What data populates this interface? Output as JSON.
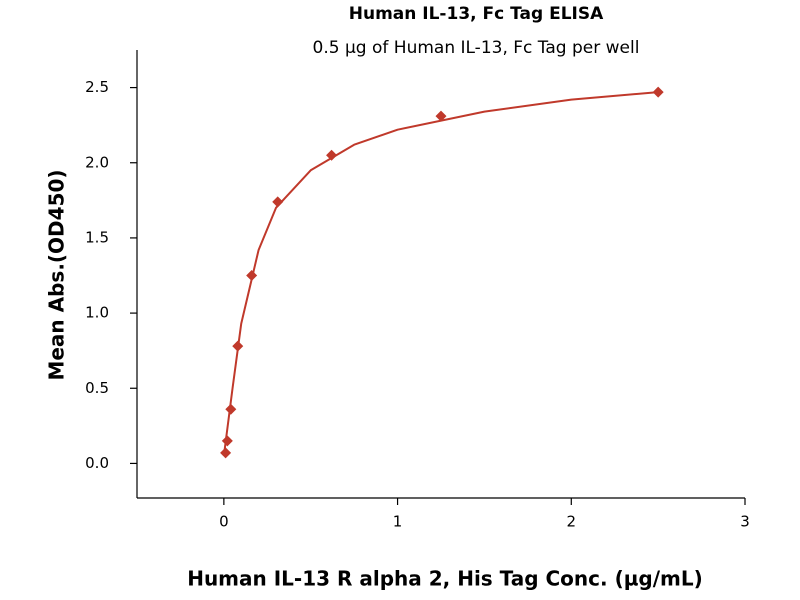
{
  "chart_data": {
    "type": "scatter",
    "title": "Human IL-13, Fc Tag ELISA",
    "subtitle": "0.5 µg of Human IL-13, Fc Tag per well",
    "x_label": "Human IL-13 R alpha 2, His Tag Conc. (µg/mL)",
    "y_label": "Mean Abs.(OD450)",
    "xlim": [
      -0.5,
      3
    ],
    "ylim": [
      -0.23,
      2.75
    ],
    "xticks": [
      0,
      1,
      2,
      3
    ],
    "yticks": [
      {
        "value": 0,
        "label": "0.0"
      },
      0.5,
      {
        "value": 1,
        "label": "1.0"
      },
      1.5,
      {
        "value": 2,
        "label": "2.0"
      },
      2.5
    ],
    "series": [
      {
        "style": "markers",
        "color": "#c0392b",
        "x": [
          0.01,
          0.02,
          0.04,
          0.08,
          0.16,
          0.31,
          0.62,
          1.25,
          2.5
        ],
        "values": [
          0.07,
          0.15,
          0.36,
          0.78,
          1.25,
          1.74,
          2.05,
          2.31,
          2.47
        ]
      },
      {
        "style": "line",
        "color": "#c0392b",
        "x": [
          0,
          0.05,
          0.1,
          0.2,
          0.3,
          0.5,
          0.75,
          1,
          1.5,
          2,
          2.5
        ],
        "values": [
          0.05,
          0.5,
          0.93,
          1.42,
          1.7,
          1.95,
          2.12,
          2.22,
          2.34,
          2.42,
          2.47
        ]
      }
    ]
  }
}
